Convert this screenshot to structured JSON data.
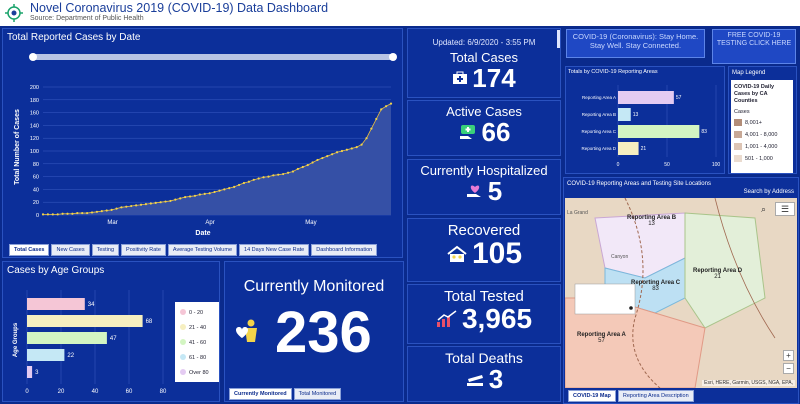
{
  "header": {
    "title": "Novel Coronavirus 2019 (COVID-19) Data Dashboard",
    "source": "Source: Department of Public Health"
  },
  "trend": {
    "title": "Total Reported Cases by Date",
    "ylabel": "Total Number of Cases",
    "xlabel": "Date",
    "tabs": [
      "Total Cases",
      "New Cases",
      "Testing",
      "Positivity Rate",
      "Average Testing Volume",
      "14 Days New Case Rate",
      "Dashboard Information"
    ]
  },
  "age": {
    "title": "Cases by Age Groups",
    "ylabel": "Age Groups",
    "tabs": [
      "Currently Monitored",
      "Total Monitored"
    ]
  },
  "stats": {
    "updated": "Updated: 6/9/2020 - 3:55 PM",
    "total_cases_label": "Total Cases",
    "total_cases": "174",
    "active_label": "Active Cases",
    "active": "66",
    "hosp_label": "Currently Hospitalized",
    "hosp": "5",
    "recovered_label": "Recovered",
    "recovered": "105",
    "tested_label": "Total Tested",
    "tested": "3,965",
    "deaths_label": "Total Deaths",
    "deaths": "3"
  },
  "monitored": {
    "label": "Currently Monitored",
    "value": "236"
  },
  "links": {
    "stay_home": "COVID-19 (Coronavirus): Stay Home. Stay Well. Stay Connected.",
    "testing": "FREE COVID-19 TESTING CLICK HERE"
  },
  "areas": {
    "title": "Totals by COVID-19 Reporting Areas"
  },
  "legend": {
    "title": "Map Legend",
    "subtitle": "COVID-19 Daily Cases by CA Counties",
    "cases_label": "Cases",
    "items": [
      "8,001+",
      "4,001 - 8,000",
      "1,001 - 4,000",
      "501 - 1,000"
    ]
  },
  "map": {
    "title": "COVID-19 Reporting Areas and Testing Site Locations",
    "search": "Search by Address",
    "labels": [
      {
        "name": "Reporting Area B",
        "val": "13"
      },
      {
        "name": "Reporting Area D",
        "val": "21"
      },
      {
        "name": "Reporting Area C",
        "val": "83"
      },
      {
        "name": "Reporting Area A",
        "val": "57"
      }
    ],
    "town": "La Grand",
    "town2": "Canyon",
    "attribution": "Esri, HERE, Garmin, USGS, NGA, EPA,",
    "tabs": [
      "COVID-19 Map",
      "Reporting Area Description"
    ]
  },
  "chart_data": [
    {
      "type": "line",
      "title": "Total Reported Cases by Date",
      "xlabel": "Date",
      "ylabel": "Total Number of Cases",
      "ylim": [
        0,
        200
      ],
      "yticks": [
        0,
        20,
        40,
        60,
        80,
        100,
        120,
        140,
        160,
        180,
        200
      ],
      "xticks": [
        "Mar",
        "Apr",
        "May"
      ],
      "values": [
        1,
        1,
        1,
        1,
        2,
        2,
        2,
        3,
        3,
        3,
        4,
        5,
        6,
        7,
        8,
        10,
        12,
        13,
        14,
        15,
        16,
        17,
        18,
        19,
        20,
        21,
        22,
        24,
        26,
        28,
        29,
        30,
        32,
        33,
        34,
        36,
        38,
        40,
        42,
        44,
        47,
        50,
        52,
        55,
        57,
        59,
        60,
        62,
        63,
        64,
        66,
        68,
        72,
        75,
        78,
        82,
        86,
        89,
        92,
        95,
        98,
        100,
        102,
        104,
        106,
        110,
        120,
        135,
        150,
        165,
        170,
        174
      ]
    },
    {
      "type": "bar",
      "title": "Cases by Age Groups",
      "categories": [
        "0 - 20",
        "21 - 40",
        "41 - 60",
        "61 - 80",
        "Over 80"
      ],
      "values": [
        34,
        68,
        47,
        22,
        3
      ],
      "colors": [
        "#f5c6d6",
        "#f6efc0",
        "#d3f5c2",
        "#c5e8f5",
        "#e4cbf2"
      ],
      "xlim": [
        0,
        80
      ],
      "xticks": [
        0,
        20,
        40,
        60,
        80
      ]
    },
    {
      "type": "bar",
      "title": "Totals by COVID-19 Reporting Areas",
      "categories": [
        "Reporting Area A",
        "Reporting Area B",
        "Reporting Area C",
        "Reporting Area D"
      ],
      "values": [
        57,
        13,
        83,
        21
      ],
      "colors": [
        "#e4cbf2",
        "#c5e8f5",
        "#d3f5c2",
        "#f6efc0"
      ],
      "xlim": [
        0,
        100
      ],
      "xticks": [
        0,
        50,
        100
      ]
    }
  ]
}
